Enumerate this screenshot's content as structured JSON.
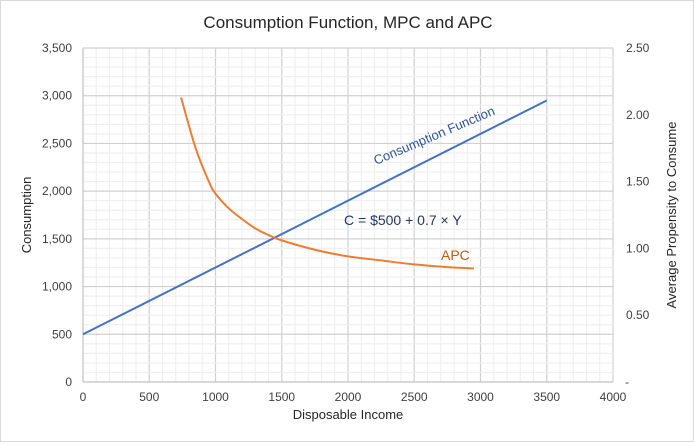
{
  "chart_data": {
    "type": "line",
    "title": "Consumption Function, MPC and APC",
    "xlabel": "Disposable Income",
    "ylabel": "Consumption",
    "y2label": "Average Propensity to Consume",
    "xlim": [
      0,
      4000
    ],
    "ylim": [
      0,
      3500
    ],
    "y2lim": [
      0,
      2.5
    ],
    "xticks": [
      "0",
      "500",
      "1000",
      "1500",
      "2000",
      "2500",
      "3000",
      "3500",
      "4000"
    ],
    "yticks": [
      "0",
      "500",
      "1,000",
      "1,500",
      "2,000",
      "2,500",
      "3,000",
      "3,500"
    ],
    "y2ticks": [
      "-",
      "0.50",
      "1.00",
      "1.50",
      "2.00",
      "2.50"
    ],
    "grid": true,
    "series": [
      {
        "name": "Consumption Function",
        "axis": "left",
        "color": "#4472c4",
        "x": [
          0,
          3500
        ],
        "y": [
          500,
          2950
        ]
      },
      {
        "name": "APC",
        "axis": "right",
        "color": "#ed7d31",
        "x": [
          740,
          850,
          950,
          1000,
          1100,
          1200,
          1300,
          1400,
          1500,
          1750,
          2000,
          2250,
          2500,
          2750,
          2950
        ],
        "y": [
          2.13,
          1.75,
          1.5,
          1.41,
          1.3,
          1.22,
          1.15,
          1.1,
          1.06,
          0.99,
          0.94,
          0.91,
          0.88,
          0.86,
          0.85
        ]
      }
    ],
    "annotations": {
      "consumption_label": "Consumption Function",
      "equation": "C = $500 + 0.7 × Y",
      "apc_label": "APC"
    }
  }
}
